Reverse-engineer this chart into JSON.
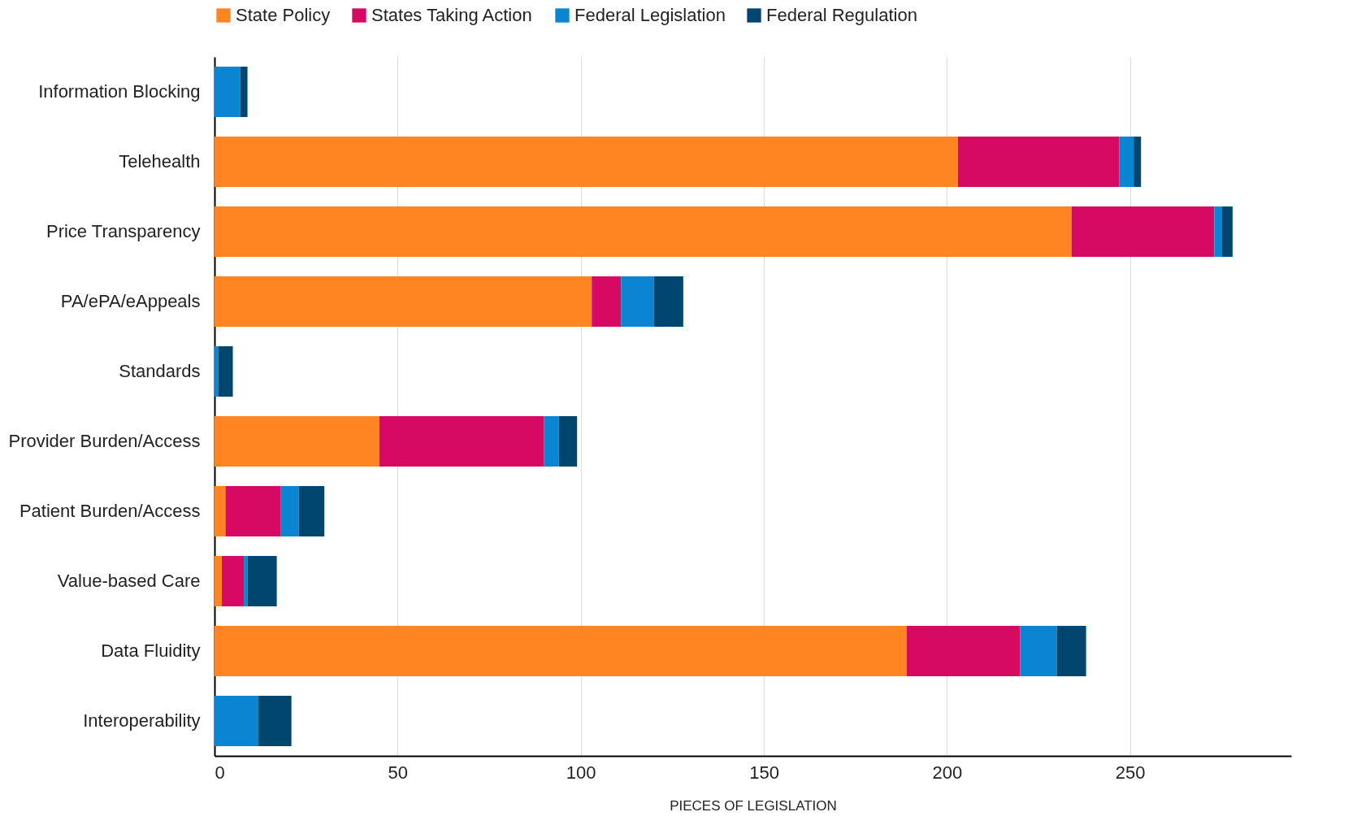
{
  "chart_data": {
    "type": "bar",
    "orientation": "horizontal",
    "stacked": true,
    "categories": [
      "Information Blocking",
      "Telehealth",
      "Price Transparency",
      "PA/ePA/eAppeals",
      "Standards",
      "Provider Burden/Access",
      "Patient Burden/Access",
      "Value-based Care",
      "Data Fluidity",
      "Interoperability"
    ],
    "series": [
      {
        "name": "State Policy",
        "color": "#ff8522",
        "values": [
          0,
          203,
          234,
          103,
          0,
          45,
          3,
          2,
          189,
          0
        ]
      },
      {
        "name": "States Taking Action",
        "color": "#d60a63",
        "values": [
          0,
          44,
          39,
          8,
          0,
          45,
          15,
          6,
          31,
          0
        ]
      },
      {
        "name": "Federal Legislation",
        "color": "#0a85d1",
        "values": [
          7,
          4,
          2,
          9,
          1,
          4,
          5,
          1,
          10,
          12
        ]
      },
      {
        "name": "Federal Regulation",
        "color": "#00466e",
        "values": [
          2,
          2,
          3,
          8,
          4,
          5,
          7,
          8,
          8,
          9
        ]
      }
    ],
    "xlabel": "PIECES OF LEGISLATION",
    "xlim": [
      0,
      294
    ],
    "xticks": [
      0,
      50,
      100,
      150,
      200,
      250
    ],
    "grid": "x",
    "legend": "top"
  }
}
